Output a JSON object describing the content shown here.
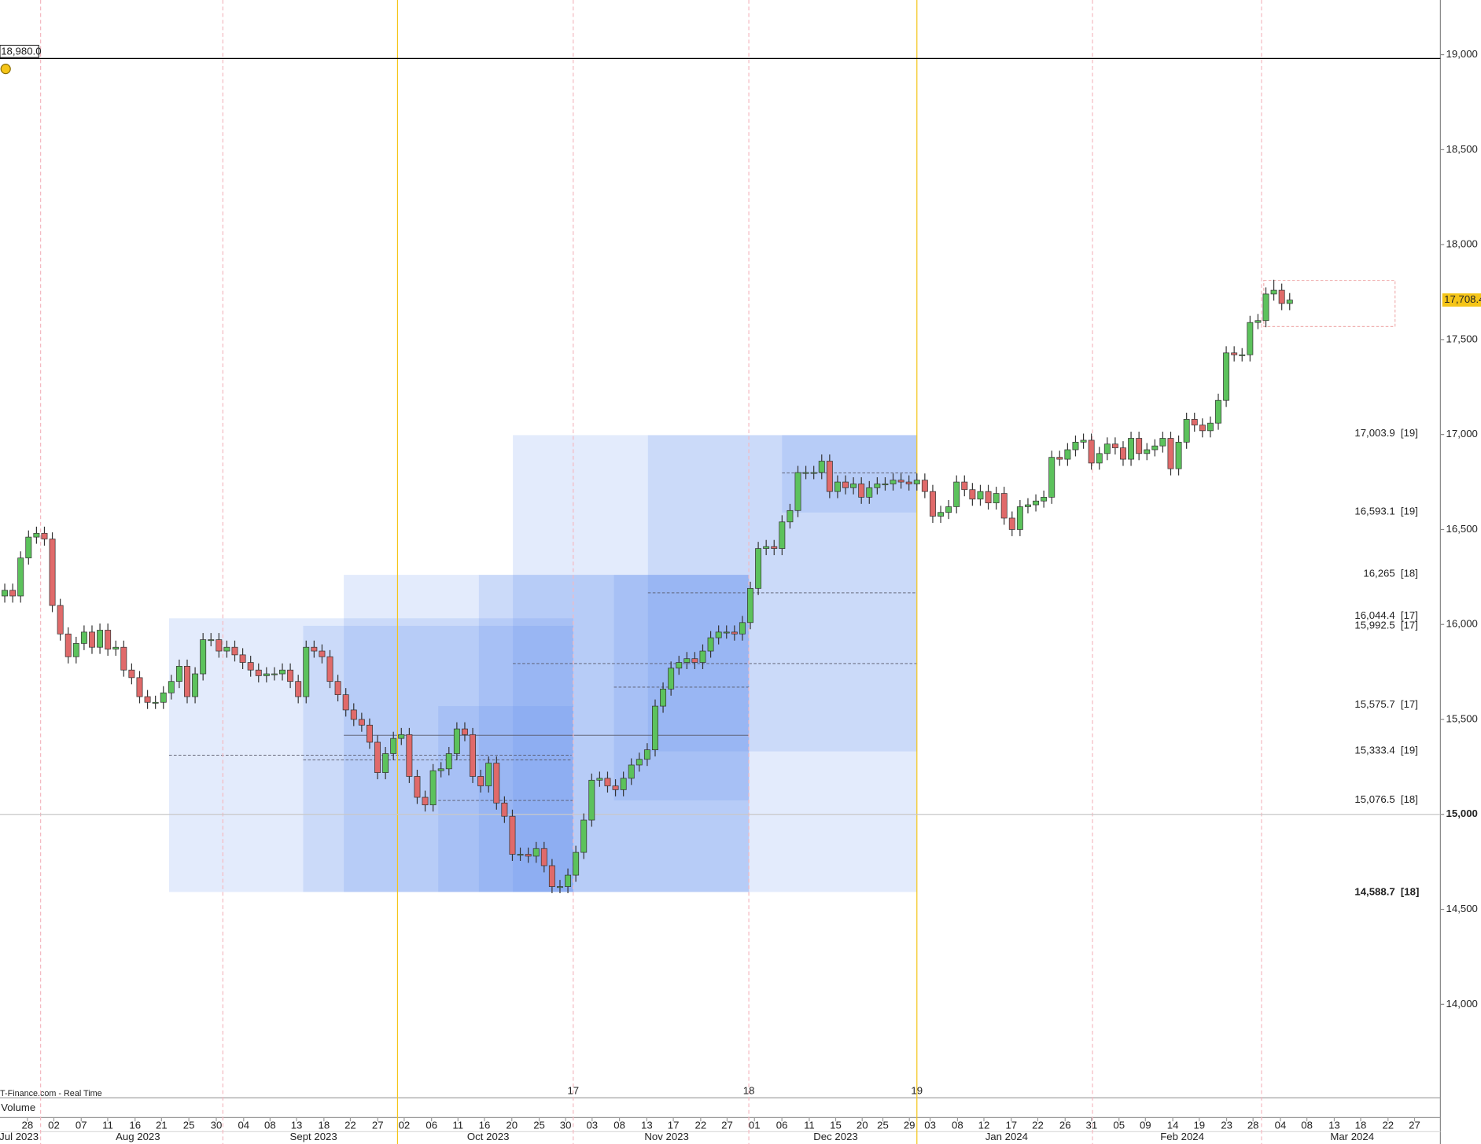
{
  "chart_data": {
    "type": "candlestick",
    "up_color": "#5cc25c",
    "down_color": "#e06a6a",
    "xlim": [
      -0.6,
      181
    ],
    "ylim": [
      13508,
      19288
    ],
    "yticks": [
      {
        "value": 14000,
        "label": "14,000"
      },
      {
        "value": 14500,
        "label": "14,500"
      },
      {
        "value": 15000,
        "label": "15,000",
        "bold": true
      },
      {
        "value": 15500,
        "label": "15,500"
      },
      {
        "value": 16000,
        "label": "16,000"
      },
      {
        "value": 16500,
        "label": "16,500"
      },
      {
        "value": 17000,
        "label": "17,000"
      },
      {
        "value": 17500,
        "label": "17,500"
      },
      {
        "value": 18000,
        "label": "18,000"
      },
      {
        "value": 18500,
        "label": "18,500"
      },
      {
        "value": 19000,
        "label": "19,000"
      }
    ],
    "xticks": [
      {
        "value": 2.86,
        "label": "28"
      },
      {
        "value": 6.19,
        "label": "02"
      },
      {
        "value": 9.64,
        "label": "07"
      },
      {
        "value": 12.98,
        "label": "11"
      },
      {
        "value": 16.43,
        "label": "16"
      },
      {
        "value": 19.76,
        "label": "21"
      },
      {
        "value": 23.21,
        "label": "25"
      },
      {
        "value": 26.67,
        "label": "30"
      },
      {
        "value": 30.12,
        "label": "04"
      },
      {
        "value": 33.45,
        "label": "08"
      },
      {
        "value": 36.79,
        "label": "13"
      },
      {
        "value": 40.24,
        "label": "18"
      },
      {
        "value": 43.57,
        "label": "22"
      },
      {
        "value": 47.02,
        "label": "27"
      },
      {
        "value": 50.36,
        "label": "02"
      },
      {
        "value": 53.81,
        "label": "06"
      },
      {
        "value": 57.14,
        "label": "11"
      },
      {
        "value": 60.48,
        "label": "16"
      },
      {
        "value": 63.93,
        "label": "20"
      },
      {
        "value": 67.38,
        "label": "25"
      },
      {
        "value": 70.71,
        "label": "30"
      },
      {
        "value": 74.05,
        "label": "03"
      },
      {
        "value": 77.5,
        "label": "08"
      },
      {
        "value": 80.95,
        "label": "13"
      },
      {
        "value": 84.29,
        "label": "17"
      },
      {
        "value": 87.74,
        "label": "22"
      },
      {
        "value": 91.07,
        "label": "27"
      },
      {
        "value": 94.52,
        "label": "01"
      },
      {
        "value": 97.98,
        "label": "06"
      },
      {
        "value": 101.43,
        "label": "11"
      },
      {
        "value": 104.76,
        "label": "15"
      },
      {
        "value": 108.1,
        "label": "20"
      },
      {
        "value": 110.71,
        "label": "25"
      },
      {
        "value": 114.05,
        "label": "29"
      },
      {
        "value": 116.67,
        "label": "03"
      },
      {
        "value": 120.12,
        "label": "08"
      },
      {
        "value": 123.45,
        "label": "12"
      },
      {
        "value": 126.9,
        "label": "17"
      },
      {
        "value": 130.24,
        "label": "22"
      },
      {
        "value": 133.69,
        "label": "26"
      },
      {
        "value": 137.02,
        "label": "31"
      },
      {
        "value": 140.48,
        "label": "05"
      },
      {
        "value": 143.81,
        "label": "09"
      },
      {
        "value": 147.26,
        "label": "14"
      },
      {
        "value": 150.6,
        "label": "19"
      },
      {
        "value": 154.05,
        "label": "23"
      },
      {
        "value": 157.38,
        "label": "28"
      },
      {
        "value": 160.83,
        "label": "04"
      },
      {
        "value": 164.17,
        "label": "08"
      },
      {
        "value": 167.62,
        "label": "13"
      },
      {
        "value": 170.95,
        "label": "18"
      },
      {
        "value": 174.4,
        "label": "22"
      },
      {
        "value": 177.74,
        "label": "27"
      }
    ],
    "months": [
      {
        "value": 1.79,
        "label": "Jul 2023"
      },
      {
        "value": 16.79,
        "label": "Aug 2023"
      },
      {
        "value": 38.93,
        "label": "Sept 2023"
      },
      {
        "value": 60.95,
        "label": "Oct 2023"
      },
      {
        "value": 83.45,
        "label": "Nov 2023"
      },
      {
        "value": 104.76,
        "label": "Dec 2023"
      },
      {
        "value": 126.31,
        "label": "Jan 2024"
      },
      {
        "value": 148.45,
        "label": "Feb 2024"
      },
      {
        "value": 169.88,
        "label": "Mar 2024"
      }
    ],
    "vlines": [
      {
        "value": 4.52,
        "color": "#f4b8c0"
      },
      {
        "value": 27.5,
        "color": "#f4b8c0"
      },
      {
        "value": 49.52,
        "color": "#f5c518"
      },
      {
        "value": 71.67,
        "color": "#f4b8c0"
      },
      {
        "value": 93.81,
        "color": "#f4b8c0"
      },
      {
        "value": 115.0,
        "color": "#f5c518"
      },
      {
        "value": 137.14,
        "color": "#f4b8c0"
      },
      {
        "value": 158.45,
        "color": "#f4b8c0"
      }
    ],
    "period_labels": [
      {
        "value": 71.67,
        "label": "17"
      },
      {
        "value": 93.81,
        "label": "18"
      },
      {
        "value": 115.0,
        "label": "19"
      }
    ],
    "hlines": [
      {
        "value": 18980,
        "label": "18,980.0",
        "color": "#000000"
      },
      {
        "value": 15000,
        "color": "#c8c8c8"
      }
    ],
    "last_price": {
      "value": 17708.4,
      "label": "17,708.4",
      "color": "#f5c518"
    },
    "levels": [
      {
        "value": 17003.9,
        "label": "17,003.9",
        "tag": "[19]"
      },
      {
        "value": 16593.1,
        "label": "16,593.1",
        "tag": "[19]"
      },
      {
        "value": 16265,
        "label": "16,265",
        "tag": "[18]"
      },
      {
        "value": 16044.4,
        "label": "16,044.4",
        "tag": "[17]"
      },
      {
        "value": 15992.5,
        "label": "15,992.5",
        "tag": "[17]"
      },
      {
        "value": 15575.7,
        "label": "15,575.7",
        "tag": "[17]"
      },
      {
        "value": 15333.4,
        "label": "15,333.4",
        "tag": "[19]"
      },
      {
        "value": 15076.5,
        "label": "15,076.5",
        "tag": "[18]"
      },
      {
        "value": 14588.7,
        "label": "14,588.7",
        "tag": "[18]"
      }
    ],
    "source": "T-Finance.com - Real Time",
    "panel_label": "Volume",
    "candles": [
      [
        16150,
        16215,
        16115,
        16180
      ],
      [
        16180,
        16215,
        16115,
        16150
      ],
      [
        16150,
        16385,
        16115,
        16350
      ],
      [
        16350,
        16495,
        16315,
        16460
      ],
      [
        16460,
        16515,
        16425,
        16480
      ],
      [
        16480,
        16515,
        16415,
        16450
      ],
      [
        16450,
        16485,
        16065,
        16100
      ],
      [
        16100,
        16135,
        15915,
        15950
      ],
      [
        15950,
        15985,
        15795,
        15830
      ],
      [
        15830,
        15935,
        15795,
        15900
      ],
      [
        15900,
        15995,
        15865,
        15960
      ],
      [
        15960,
        15995,
        15845,
        15880
      ],
      [
        15880,
        16005,
        15845,
        15970
      ],
      [
        15970,
        16005,
        15835,
        15870
      ],
      [
        15870,
        15915,
        15835,
        15880
      ],
      [
        15880,
        15915,
        15725,
        15760
      ],
      [
        15760,
        15795,
        15685,
        15720
      ],
      [
        15720,
        15755,
        15585,
        15620
      ],
      [
        15620,
        15655,
        15555,
        15590
      ],
      [
        15590,
        15625,
        15555,
        15590
      ],
      [
        15590,
        15675,
        15555,
        15640
      ],
      [
        15640,
        15735,
        15605,
        15700
      ],
      [
        15700,
        15815,
        15665,
        15780
      ],
      [
        15780,
        15815,
        15585,
        15620
      ],
      [
        15620,
        15775,
        15585,
        15740
      ],
      [
        15740,
        15955,
        15705,
        15920
      ],
      [
        15920,
        15955,
        15885,
        15920
      ],
      [
        15920,
        15955,
        15825,
        15860
      ],
      [
        15860,
        15915,
        15825,
        15880
      ],
      [
        15880,
        15915,
        15805,
        15840
      ],
      [
        15840,
        15875,
        15765,
        15800
      ],
      [
        15800,
        15835,
        15725,
        15760
      ],
      [
        15760,
        15795,
        15695,
        15730
      ],
      [
        15730,
        15775,
        15695,
        15740
      ],
      [
        15740,
        15775,
        15705,
        15740
      ],
      [
        15740,
        15795,
        15705,
        15760
      ],
      [
        15760,
        15795,
        15665,
        15700
      ],
      [
        15700,
        15735,
        15585,
        15620
      ],
      [
        15620,
        15915,
        15585,
        15880
      ],
      [
        15880,
        15915,
        15825,
        15860
      ],
      [
        15860,
        15895,
        15795,
        15830
      ],
      [
        15830,
        15865,
        15665,
        15700
      ],
      [
        15700,
        15735,
        15595,
        15630
      ],
      [
        15630,
        15665,
        15515,
        15550
      ],
      [
        15550,
        15585,
        15465,
        15500
      ],
      [
        15500,
        15535,
        15435,
        15470
      ],
      [
        15470,
        15505,
        15345,
        15380
      ],
      [
        15380,
        15415,
        15185,
        15220
      ],
      [
        15220,
        15355,
        15185,
        15320
      ],
      [
        15320,
        15435,
        15285,
        15400
      ],
      [
        15400,
        15455,
        15365,
        15420
      ],
      [
        15420,
        15455,
        15165,
        15200
      ],
      [
        15200,
        15235,
        15055,
        15090
      ],
      [
        15090,
        15125,
        15015,
        15050
      ],
      [
        15050,
        15265,
        15015,
        15230
      ],
      [
        15230,
        15275,
        15195,
        15240
      ],
      [
        15240,
        15355,
        15205,
        15320
      ],
      [
        15320,
        15485,
        15285,
        15450
      ],
      [
        15450,
        15485,
        15385,
        15420
      ],
      [
        15420,
        15455,
        15165,
        15200
      ],
      [
        15200,
        15235,
        15115,
        15150
      ],
      [
        15150,
        15305,
        15115,
        15270
      ],
      [
        15270,
        15305,
        15025,
        15060
      ],
      [
        15060,
        15095,
        14955,
        14990
      ],
      [
        14990,
        15025,
        14755,
        14790
      ],
      [
        14790,
        14825,
        14755,
        14790
      ],
      [
        14790,
        14825,
        14745,
        14780
      ],
      [
        14780,
        14855,
        14745,
        14820
      ],
      [
        14820,
        14855,
        14695,
        14730
      ],
      [
        14730,
        14765,
        14585,
        14620
      ],
      [
        14620,
        14655,
        14585,
        14620
      ],
      [
        14620,
        14715,
        14585,
        14680
      ],
      [
        14680,
        14835,
        14645,
        14800
      ],
      [
        14800,
        15005,
        14765,
        14970
      ],
      [
        14970,
        15215,
        14935,
        15180
      ],
      [
        15180,
        15225,
        15145,
        15190
      ],
      [
        15190,
        15225,
        15115,
        15150
      ],
      [
        15150,
        15185,
        15095,
        15130
      ],
      [
        15130,
        15225,
        15095,
        15190
      ],
      [
        15190,
        15295,
        15155,
        15260
      ],
      [
        15260,
        15325,
        15225,
        15290
      ],
      [
        15290,
        15375,
        15255,
        15340
      ],
      [
        15340,
        15605,
        15305,
        15570
      ],
      [
        15570,
        15695,
        15535,
        15660
      ],
      [
        15660,
        15805,
        15625,
        15770
      ],
      [
        15770,
        15835,
        15735,
        15800
      ],
      [
        15800,
        15855,
        15765,
        15820
      ],
      [
        15820,
        15855,
        15765,
        15800
      ],
      [
        15800,
        15895,
        15765,
        15860
      ],
      [
        15860,
        15965,
        15825,
        15930
      ],
      [
        15930,
        15995,
        15895,
        15960
      ],
      [
        15960,
        15995,
        15925,
        15960
      ],
      [
        15960,
        15995,
        15915,
        15950
      ],
      [
        15950,
        16045,
        15915,
        16010
      ],
      [
        16010,
        16225,
        15975,
        16190
      ],
      [
        16190,
        16435,
        16155,
        16400
      ],
      [
        16400,
        16445,
        16365,
        16410
      ],
      [
        16410,
        16445,
        16365,
        16400
      ],
      [
        16400,
        16575,
        16365,
        16540
      ],
      [
        16540,
        16635,
        16505,
        16600
      ],
      [
        16600,
        16835,
        16565,
        16800
      ],
      [
        16800,
        16835,
        16765,
        16800
      ],
      [
        16800,
        16835,
        16765,
        16800
      ],
      [
        16800,
        16895,
        16765,
        16860
      ],
      [
        16860,
        16895,
        16665,
        16700
      ],
      [
        16700,
        16785,
        16665,
        16750
      ],
      [
        16750,
        16785,
        16685,
        16720
      ],
      [
        16720,
        16775,
        16685,
        16740
      ],
      [
        16740,
        16775,
        16635,
        16670
      ],
      [
        16670,
        16755,
        16635,
        16720
      ],
      [
        16720,
        16775,
        16685,
        16740
      ],
      [
        16740,
        16775,
        16705,
        16740
      ],
      [
        16740,
        16795,
        16705,
        16760
      ],
      [
        16760,
        16795,
        16715,
        16750
      ],
      [
        16750,
        16785,
        16705,
        16740
      ],
      [
        16740,
        16795,
        16705,
        16760
      ],
      [
        16760,
        16795,
        16665,
        16700
      ],
      [
        16700,
        16735,
        16535,
        16570
      ],
      [
        16570,
        16625,
        16535,
        16590
      ],
      [
        16590,
        16655,
        16555,
        16620
      ],
      [
        16620,
        16785,
        16585,
        16750
      ],
      [
        16750,
        16785,
        16675,
        16710
      ],
      [
        16710,
        16745,
        16625,
        16660
      ],
      [
        16660,
        16735,
        16625,
        16700
      ],
      [
        16700,
        16735,
        16605,
        16640
      ],
      [
        16640,
        16725,
        16605,
        16690
      ],
      [
        16690,
        16725,
        16525,
        16560
      ],
      [
        16560,
        16595,
        16465,
        16500
      ],
      [
        16500,
        16655,
        16465,
        16620
      ],
      [
        16620,
        16665,
        16585,
        16630
      ],
      [
        16630,
        16685,
        16595,
        16650
      ],
      [
        16650,
        16705,
        16615,
        16670
      ],
      [
        16670,
        16915,
        16635,
        16880
      ],
      [
        16880,
        16915,
        16835,
        16870
      ],
      [
        16870,
        16955,
        16835,
        16920
      ],
      [
        16920,
        16995,
        16885,
        16960
      ],
      [
        16960,
        17005,
        16925,
        16970
      ],
      [
        16970,
        17005,
        16815,
        16850
      ],
      [
        16850,
        16935,
        16815,
        16900
      ],
      [
        16900,
        16985,
        16865,
        16950
      ],
      [
        16950,
        16985,
        16895,
        16930
      ],
      [
        16930,
        16965,
        16835,
        16870
      ],
      [
        16870,
        17015,
        16835,
        16980
      ],
      [
        16980,
        17015,
        16865,
        16900
      ],
      [
        16900,
        16955,
        16865,
        16920
      ],
      [
        16920,
        16975,
        16885,
        16940
      ],
      [
        16940,
        17015,
        16905,
        16980
      ],
      [
        16980,
        17015,
        16785,
        16820
      ],
      [
        16820,
        16995,
        16785,
        16960
      ],
      [
        16960,
        17115,
        16925,
        17080
      ],
      [
        17080,
        17115,
        17015,
        17050
      ],
      [
        17050,
        17085,
        16985,
        17020
      ],
      [
        17020,
        17095,
        16985,
        17060
      ],
      [
        17060,
        17215,
        17025,
        17180
      ],
      [
        17180,
        17465,
        17145,
        17430
      ],
      [
        17430,
        17465,
        17385,
        17420
      ],
      [
        17420,
        17455,
        17385,
        17420
      ],
      [
        17420,
        17625,
        17385,
        17590
      ],
      [
        17590,
        17635,
        17555,
        17600
      ],
      [
        17600,
        17775,
        17565,
        17740
      ],
      [
        17740,
        17815,
        17705,
        17760
      ],
      [
        17760,
        17795,
        17655,
        17690
      ],
      [
        17690,
        17745,
        17655,
        17708.4
      ]
    ]
  }
}
